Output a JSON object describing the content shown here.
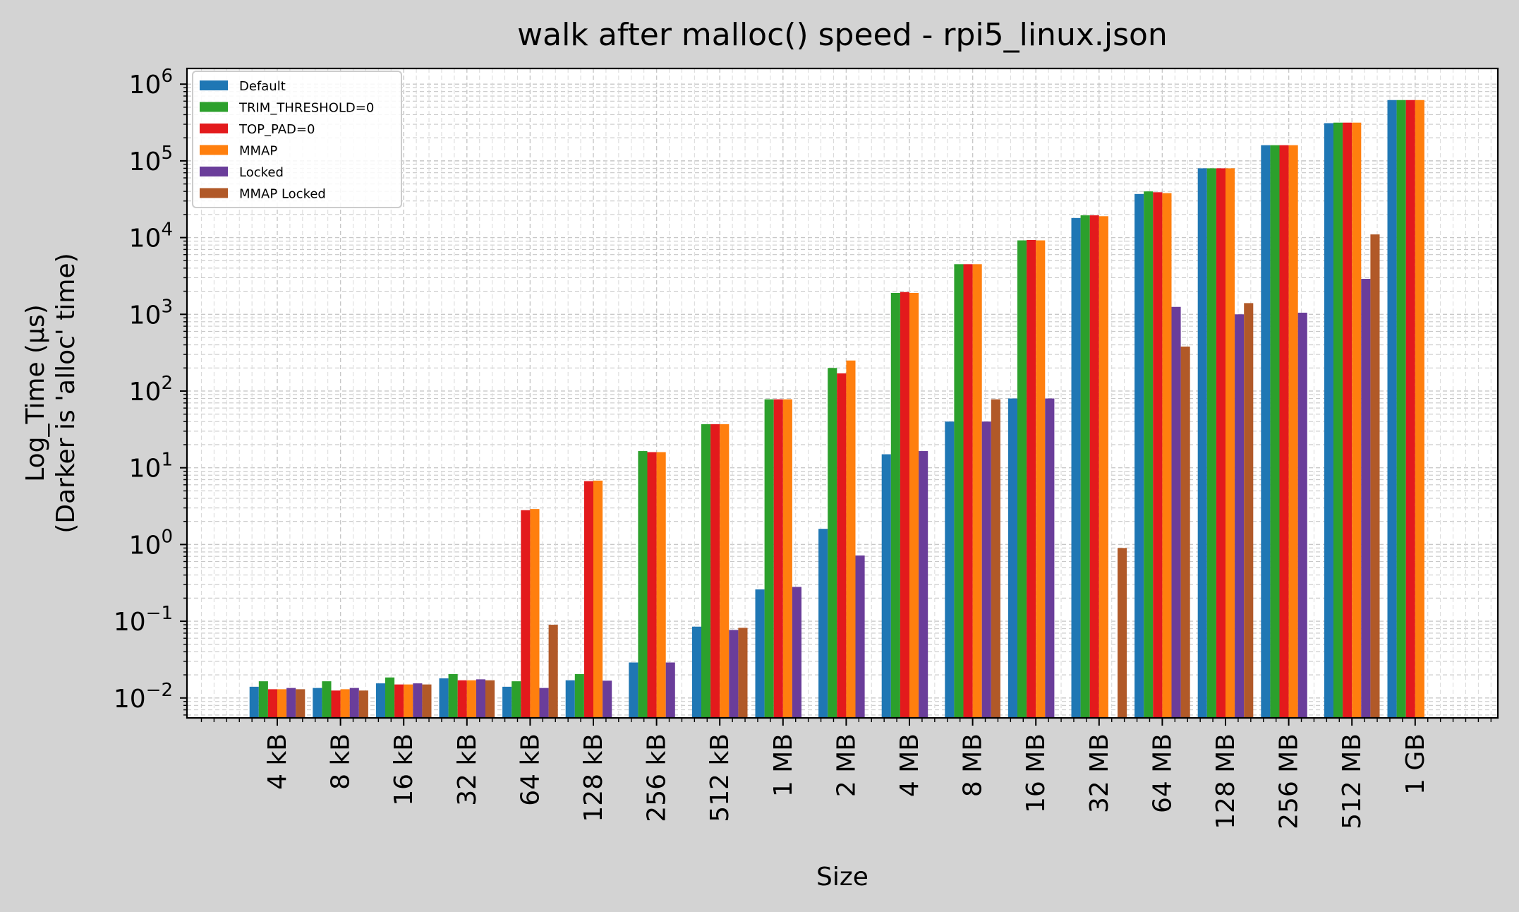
{
  "chart_data": {
    "type": "bar",
    "title": "walk after malloc() speed - rpi5_linux.json",
    "xlabel": "Size",
    "ylabel_line1": "Log_Time (µs)",
    "ylabel_line2": "(Darker is 'alloc' time)",
    "yscale": "log",
    "ylim": [
      0.0055,
      1600000
    ],
    "y_ticks": [
      {
        "value": 0.01,
        "base": "10",
        "exp": "−2"
      },
      {
        "value": 0.1,
        "base": "10",
        "exp": "−1"
      },
      {
        "value": 1,
        "base": "10",
        "exp": "0"
      },
      {
        "value": 10,
        "base": "10",
        "exp": "1"
      },
      {
        "value": 100,
        "base": "10",
        "exp": "2"
      },
      {
        "value": 1000,
        "base": "10",
        "exp": "3"
      },
      {
        "value": 10000,
        "base": "10",
        "exp": "4"
      },
      {
        "value": 100000,
        "base": "10",
        "exp": "5"
      },
      {
        "value": 1000000,
        "base": "10",
        "exp": "6"
      }
    ],
    "grid": true,
    "legend_position": "top-left",
    "categories": [
      "4 kB",
      "8 kB",
      "16 kB",
      "32 kB",
      "64 kB",
      "128 kB",
      "256 kB",
      "512 kB",
      "1 MB",
      "2 MB",
      "4 MB",
      "8 MB",
      "16 MB",
      "32 MB",
      "64 MB",
      "128 MB",
      "256 MB",
      "512 MB",
      "1 GB"
    ],
    "series": [
      {
        "name": "Default",
        "color": "#1f77b4",
        "values": [
          0.014,
          0.0135,
          0.0155,
          0.018,
          0.014,
          0.017,
          0.029,
          0.085,
          0.26,
          1.6,
          15,
          40,
          80,
          18000,
          37000,
          80000,
          160000,
          310000,
          620000
        ]
      },
      {
        "name": "TRIM_THRESHOLD=0",
        "color": "#2ca02c",
        "values": [
          0.0165,
          0.0165,
          0.0185,
          0.0205,
          0.0165,
          0.0205,
          16.5,
          37,
          78,
          200,
          1900,
          4500,
          9200,
          19500,
          40000,
          80000,
          160000,
          315000,
          620000
        ]
      },
      {
        "name": "TOP_PAD=0",
        "color": "#e31a1c",
        "values": [
          0.013,
          0.0125,
          0.015,
          0.017,
          2.8,
          6.7,
          16,
          37,
          78,
          170,
          1950,
          4500,
          9300,
          19500,
          39000,
          80000,
          160000,
          315000,
          620000
        ]
      },
      {
        "name": "MMAP",
        "color": "#ff7f0e",
        "values": [
          0.013,
          0.013,
          0.015,
          0.017,
          2.9,
          6.8,
          16,
          37,
          78,
          250,
          1900,
          4500,
          9200,
          19000,
          38000,
          80000,
          160000,
          315000,
          620000
        ]
      },
      {
        "name": "Locked",
        "color": "#6a3d9a",
        "values": [
          0.0135,
          0.0135,
          0.0155,
          0.0175,
          0.0135,
          0.0168,
          0.029,
          0.077,
          0.28,
          0.72,
          16.5,
          40,
          80,
          null,
          1250,
          1000,
          1050,
          2900,
          null
        ]
      },
      {
        "name": "MMAP Locked",
        "color": "#b15928",
        "values": [
          0.013,
          0.0125,
          0.015,
          0.017,
          0.09,
          null,
          null,
          0.082,
          null,
          null,
          null,
          78,
          null,
          0.9,
          380,
          1400,
          null,
          11000,
          null
        ]
      }
    ]
  }
}
